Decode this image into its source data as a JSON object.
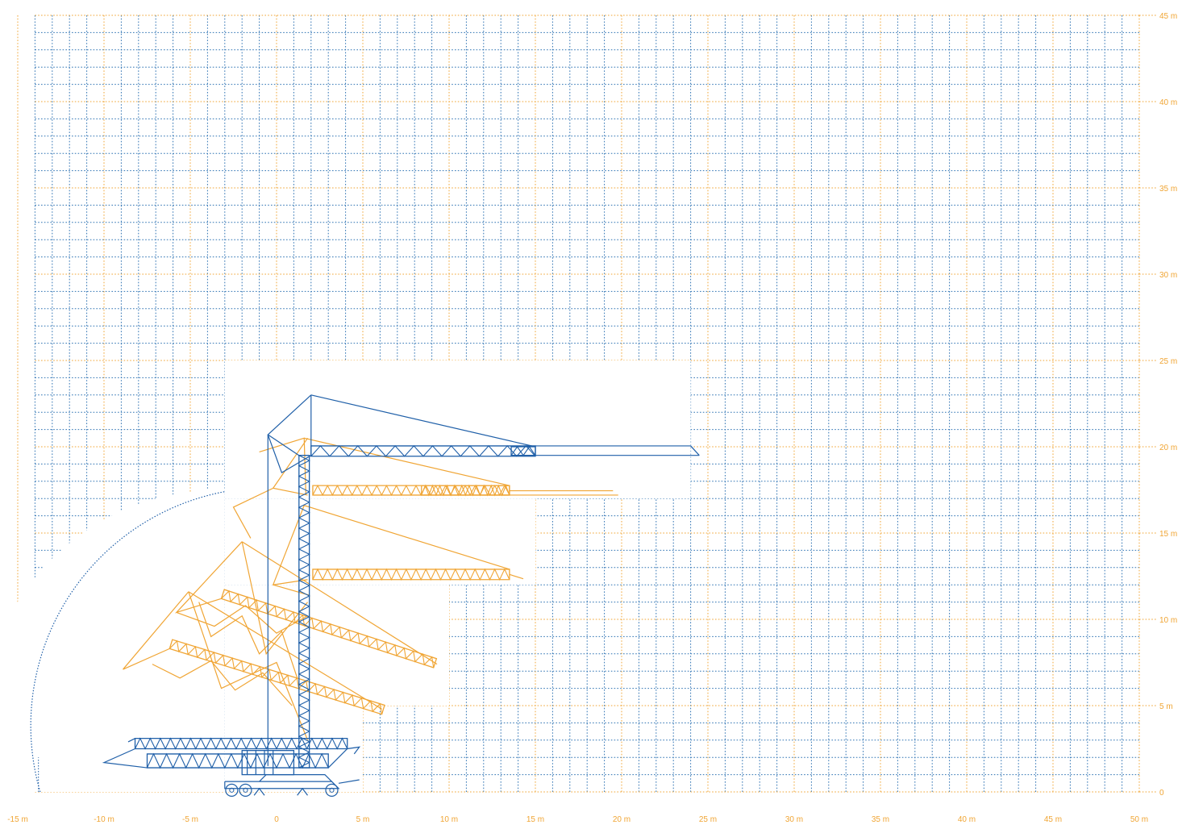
{
  "colors": {
    "grid_blue": "#2f73b3",
    "grid_orange": "#f0a534",
    "crane_blue": "#1f5fa8",
    "crane_orange": "#f0a534",
    "label": "#f0a534"
  },
  "x_axis": {
    "unit": "m",
    "range": [
      -15,
      50
    ],
    "labels": [
      "-15 m",
      "-10 m",
      "-5 m",
      "0",
      "5 m",
      "10 m",
      "15 m",
      "20 m",
      "25 m",
      "30 m",
      "35 m",
      "40 m",
      "45 m",
      "50 m"
    ]
  },
  "y_axis": {
    "unit": "m",
    "range": [
      0,
      45
    ],
    "labels": [
      "0",
      "5 m",
      "10 m",
      "15 m",
      "20 m",
      "25 m",
      "30 m",
      "35 m",
      "40 m",
      "45 m"
    ]
  },
  "grid_step_m": 1,
  "major_step_m": 5,
  "crane": {
    "tower_x_m": 1.5,
    "hook_height_m": 19.5,
    "jib_tip_m": 24.5,
    "erection_stages": [
      {
        "tip": [
          24.5,
          19.5
        ],
        "color": "blue"
      },
      {
        "tip": [
          19.5,
          17.4
        ],
        "color": "orange"
      },
      {
        "tip": [
          14.5,
          12.4
        ],
        "color": "orange"
      },
      {
        "tip": [
          9.5,
          7.1
        ],
        "color": "orange"
      },
      {
        "tip": [
          6.0,
          4.6
        ],
        "color": "orange"
      },
      {
        "tip": [
          -10.0,
          1.7
        ],
        "color": "blue"
      }
    ]
  },
  "blank_areas": [
    {
      "x": [
        -3,
        24
      ],
      "y": [
        17,
        25
      ]
    },
    {
      "x": [
        -3,
        15
      ],
      "y": [
        12,
        17
      ]
    },
    {
      "x": [
        -3,
        10
      ],
      "y": [
        5,
        12
      ]
    },
    {
      "x": [
        -3,
        5
      ],
      "y": [
        0,
        5
      ]
    }
  ]
}
